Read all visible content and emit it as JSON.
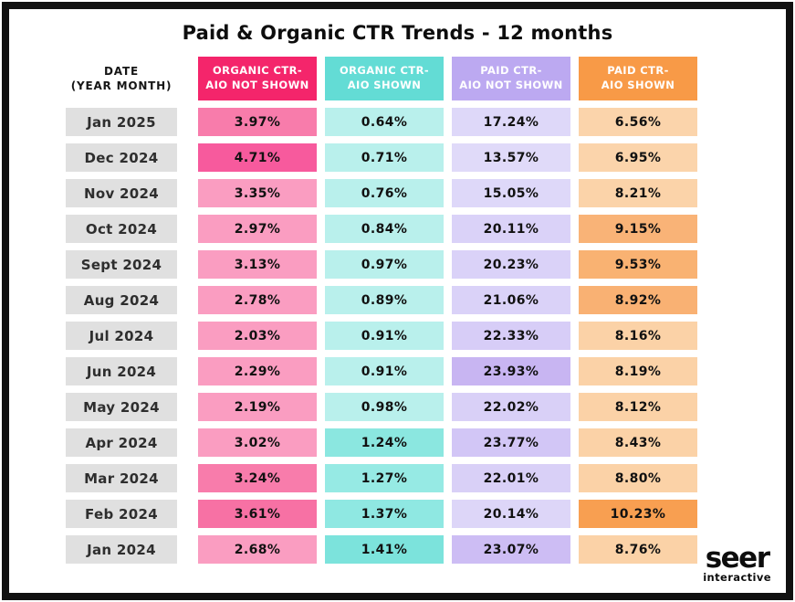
{
  "title": "Paid & Organic CTR Trends - 12 months",
  "palette": {
    "border": "#111111",
    "background": "#ffffff",
    "date_cell_bg": "#e0e0e0",
    "date_text": "#2e2e2e",
    "value_text": "#111111",
    "header_text": "#ffffff"
  },
  "table": {
    "date_header_line1": "DATE",
    "date_header_line2": "(YEAR MONTH)",
    "value_columns": [
      {
        "id": "organic-ctr-aio-not-shown",
        "label_line1": "ORGANIC CTR-",
        "label_line2": "AIO NOT SHOWN",
        "header_color": "#F4256B"
      },
      {
        "id": "organic-ctr-aio-shown",
        "label_line1": "ORGANIC CTR-",
        "label_line2": "AIO SHOWN",
        "header_color": "#63DCD5"
      },
      {
        "id": "paid-ctr-aio-not-shown",
        "label_line1": "PAID CTR-",
        "label_line2": "AIO NOT SHOWN",
        "header_color": "#BCA9F1"
      },
      {
        "id": "paid-ctr-aio-shown",
        "label_line1": "PAID CTR-",
        "label_line2": "AIO SHOWN",
        "header_color": "#F89A47"
      }
    ],
    "rows": [
      {
        "date": "Jan 2025",
        "cells": [
          {
            "value": "3.97%",
            "bg": "#F87CAB"
          },
          {
            "value": "0.64%",
            "bg": "#B9F0EC"
          },
          {
            "value": "17.24%",
            "bg": "#DED8F9"
          },
          {
            "value": "6.56%",
            "bg": "#FBD4AB"
          }
        ]
      },
      {
        "date": "Dec 2024",
        "cells": [
          {
            "value": "4.71%",
            "bg": "#F75A9D"
          },
          {
            "value": "0.71%",
            "bg": "#B9F0EC"
          },
          {
            "value": "13.57%",
            "bg": "#E0DAF9"
          },
          {
            "value": "6.95%",
            "bg": "#FBD4AB"
          }
        ]
      },
      {
        "date": "Nov 2024",
        "cells": [
          {
            "value": "3.35%",
            "bg": "#FA9DC1"
          },
          {
            "value": "0.76%",
            "bg": "#B9F0EC"
          },
          {
            "value": "15.05%",
            "bg": "#DED8F9"
          },
          {
            "value": "8.21%",
            "bg": "#FBD3A9"
          }
        ]
      },
      {
        "date": "Oct 2024",
        "cells": [
          {
            "value": "2.97%",
            "bg": "#FA9DC1"
          },
          {
            "value": "0.84%",
            "bg": "#B9F0EC"
          },
          {
            "value": "20.11%",
            "bg": "#DAD2F8"
          },
          {
            "value": "9.15%",
            "bg": "#F9B377"
          }
        ]
      },
      {
        "date": "Sept 2024",
        "cells": [
          {
            "value": "3.13%",
            "bg": "#FA9DC1"
          },
          {
            "value": "0.97%",
            "bg": "#B9F0EC"
          },
          {
            "value": "20.23%",
            "bg": "#DAD2F8"
          },
          {
            "value": "9.53%",
            "bg": "#F9B272"
          }
        ]
      },
      {
        "date": "Aug 2024",
        "cells": [
          {
            "value": "2.78%",
            "bg": "#FA9DC1"
          },
          {
            "value": "0.89%",
            "bg": "#B9F0EC"
          },
          {
            "value": "21.06%",
            "bg": "#DAD2F8"
          },
          {
            "value": "8.92%",
            "bg": "#F9B173"
          }
        ]
      },
      {
        "date": "Jul 2024",
        "cells": [
          {
            "value": "2.03%",
            "bg": "#FA9DC1"
          },
          {
            "value": "0.91%",
            "bg": "#B9F0EC"
          },
          {
            "value": "22.33%",
            "bg": "#D7CDF7"
          },
          {
            "value": "8.16%",
            "bg": "#FBD2A7"
          }
        ]
      },
      {
        "date": "Jun 2024",
        "cells": [
          {
            "value": "2.29%",
            "bg": "#FA9DC1"
          },
          {
            "value": "0.91%",
            "bg": "#B9F0EC"
          },
          {
            "value": "23.93%",
            "bg": "#C8B5F2"
          },
          {
            "value": "8.19%",
            "bg": "#FBD2A7"
          }
        ]
      },
      {
        "date": "May 2024",
        "cells": [
          {
            "value": "2.19%",
            "bg": "#FA9DC1"
          },
          {
            "value": "0.98%",
            "bg": "#B9F0EC"
          },
          {
            "value": "22.02%",
            "bg": "#D9D0F7"
          },
          {
            "value": "8.12%",
            "bg": "#FBD2A7"
          }
        ]
      },
      {
        "date": "Apr 2024",
        "cells": [
          {
            "value": "3.02%",
            "bg": "#FA9DC1"
          },
          {
            "value": "1.24%",
            "bg": "#8BE7E0"
          },
          {
            "value": "23.77%",
            "bg": "#D2C6F6"
          },
          {
            "value": "8.43%",
            "bg": "#FBD2A7"
          }
        ]
      },
      {
        "date": "Mar 2024",
        "cells": [
          {
            "value": "3.24%",
            "bg": "#F87CAB"
          },
          {
            "value": "1.27%",
            "bg": "#96EAE4"
          },
          {
            "value": "22.01%",
            "bg": "#D9D0F7"
          },
          {
            "value": "8.80%",
            "bg": "#FBD2A7"
          }
        ]
      },
      {
        "date": "Feb 2024",
        "cells": [
          {
            "value": "3.61%",
            "bg": "#F771A4"
          },
          {
            "value": "1.37%",
            "bg": "#8FE8E2"
          },
          {
            "value": "20.14%",
            "bg": "#DDD6F8"
          },
          {
            "value": "10.23%",
            "bg": "#F89F51"
          }
        ]
      },
      {
        "date": "Jan 2024",
        "cells": [
          {
            "value": "2.68%",
            "bg": "#FA9DC1"
          },
          {
            "value": "1.41%",
            "bg": "#7CE3DC"
          },
          {
            "value": "23.07%",
            "bg": "#CDBDF4"
          },
          {
            "value": "8.76%",
            "bg": "#FBD2A7"
          }
        ]
      }
    ]
  },
  "logo": {
    "primary": "seer",
    "secondary": "interactive"
  },
  "chart_data": {
    "type": "table",
    "title": "Paid & Organic CTR Trends - 12 months",
    "unit": "%",
    "categories": [
      "Jan 2025",
      "Dec 2024",
      "Nov 2024",
      "Oct 2024",
      "Sept 2024",
      "Aug 2024",
      "Jul 2024",
      "Jun 2024",
      "May 2024",
      "Apr 2024",
      "Mar 2024",
      "Feb 2024",
      "Jan 2024"
    ],
    "series": [
      {
        "name": "ORGANIC CTR- AIO NOT SHOWN",
        "color": "#F4256B",
        "values": [
          3.97,
          4.71,
          3.35,
          2.97,
          3.13,
          2.78,
          2.03,
          2.29,
          2.19,
          3.02,
          3.24,
          3.61,
          2.68
        ]
      },
      {
        "name": "ORGANIC CTR- AIO SHOWN",
        "color": "#63DCD5",
        "values": [
          0.64,
          0.71,
          0.76,
          0.84,
          0.97,
          0.89,
          0.91,
          0.91,
          0.98,
          1.24,
          1.27,
          1.37,
          1.41
        ]
      },
      {
        "name": "PAID CTR- AIO NOT SHOWN",
        "color": "#BCA9F1",
        "values": [
          17.24,
          13.57,
          15.05,
          20.11,
          20.23,
          21.06,
          22.33,
          23.93,
          22.02,
          23.77,
          22.01,
          20.14,
          23.07
        ]
      },
      {
        "name": "PAID CTR- AIO SHOWN",
        "color": "#F89A47",
        "values": [
          6.56,
          6.95,
          8.21,
          9.15,
          9.53,
          8.92,
          8.16,
          8.19,
          8.12,
          8.43,
          8.8,
          10.23,
          8.76
        ]
      }
    ],
    "layout": {
      "row_shading": "darker cell background indicates higher/highlighted value within its column"
    }
  }
}
